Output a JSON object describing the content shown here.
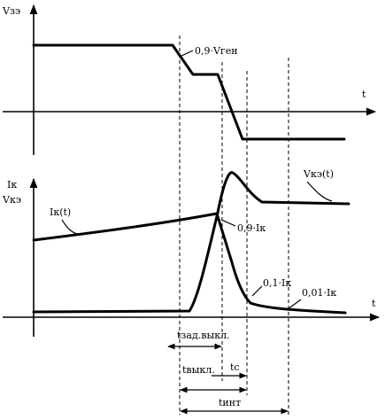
{
  "labels": {
    "vge_axis": "Vзэ",
    "t_axis_top": "t",
    "vgen_level": "0,9·Vген",
    "ik_axis": "Iк",
    "vke_axis": "Vкэ",
    "t_axis_bottom": "t",
    "vke_curve": "Vкэ(t)",
    "ik_curve": "Iк(t)",
    "ik_90": "0,9·Iк",
    "ik_10": "0,1·Iк",
    "ik_01": "0,01·Iк",
    "t_delay_off": "tзад.выкл.",
    "t_off": "tвыкл.",
    "t_fall": "tс",
    "t_int": "tинт"
  }
}
